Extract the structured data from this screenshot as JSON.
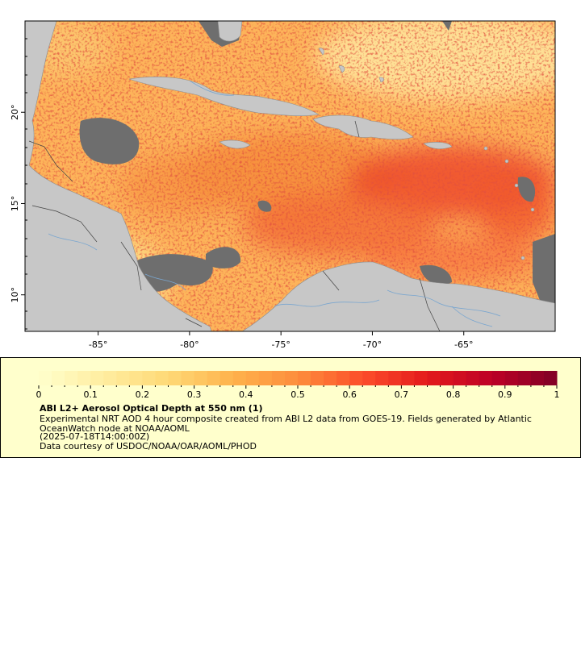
{
  "map": {
    "longitude_ticks": [
      {
        "value": -85,
        "label": "-85°"
      },
      {
        "value": -80,
        "label": "-80°"
      },
      {
        "value": -75,
        "label": "-75°"
      },
      {
        "value": -70,
        "label": "-70°"
      },
      {
        "value": -65,
        "label": "-65°"
      }
    ],
    "latitude_ticks": [
      {
        "value": 10,
        "label": "10°"
      },
      {
        "value": 15,
        "label": "15°"
      },
      {
        "value": 20,
        "label": "20°"
      }
    ],
    "longitude_range": [
      -89,
      -60
    ],
    "latitude_range": [
      8,
      25
    ],
    "colors": {
      "land": "#c7c7c7",
      "no_data": "#6e6e6e",
      "rivers": "#7aa6cf",
      "borders": "#555555"
    }
  },
  "legend": {
    "title": "ABI L2+ Aerosol Optical Depth at 550 nm (1)",
    "description": "Experimental NRT AOD 4 hour composite created from ABI L2 data from GOES-19. Fields generated by Atlantic OceanWatch node at NOAA/AOML",
    "timestamp": "(2025-07-18T14:00:00Z)",
    "credit": "Data courtesy of USDOC/NOAA/OAR/AOML/PHOD",
    "colorbar": {
      "min": 0,
      "max": 1,
      "tick_labels": [
        "0",
        "0.1",
        "0.2",
        "0.3",
        "0.4",
        "0.5",
        "0.6",
        "0.7",
        "0.8",
        "0.9",
        "1"
      ],
      "colors": [
        "#ffffcc",
        "#ffeda0",
        "#fed976",
        "#feb24c",
        "#fd8d3c",
        "#fc4e2a",
        "#e31a1c",
        "#bd0026",
        "#800026"
      ]
    }
  }
}
